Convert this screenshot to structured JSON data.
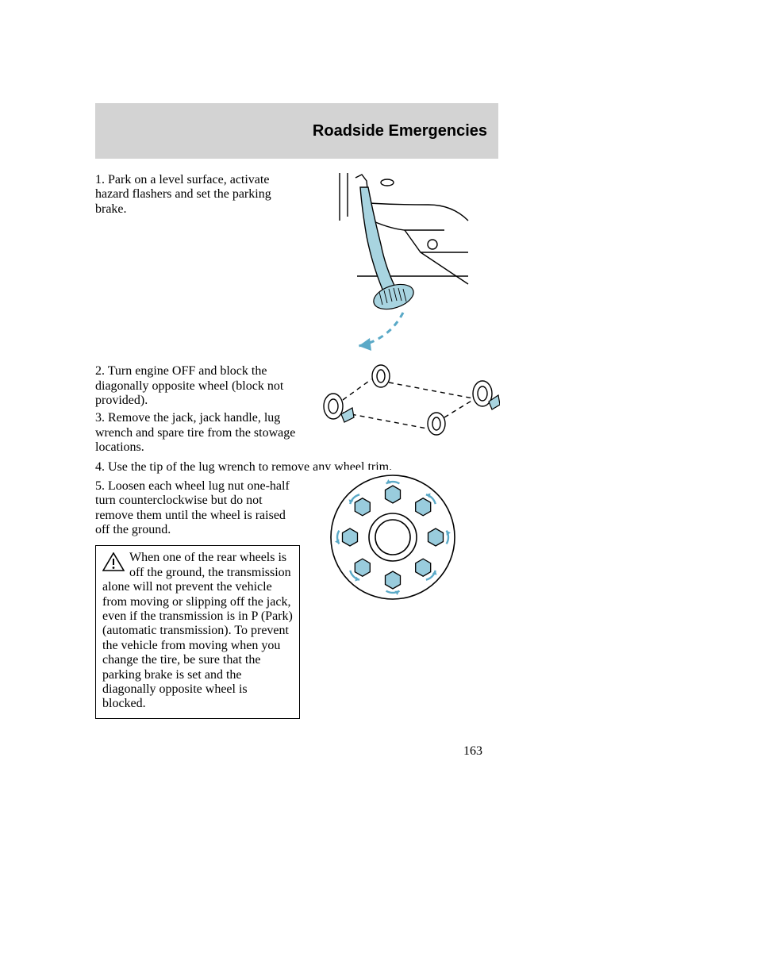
{
  "header": {
    "title": "Roadside Emergencies"
  },
  "steps": {
    "s1": "1. Park on a level surface, activate hazard flashers and set the parking brake.",
    "s2": "2. Turn engine OFF and block the diagonally opposite wheel (block not provided).",
    "s3": "3. Remove the jack, jack handle, lug wrench and spare tire from the stowage locations.",
    "s4": "4. Use the tip of the lug wrench to remove any wheel trim.",
    "s5": "5. Loosen each wheel lug nut one-half turn counterclockwise but do not remove them until the wheel is raised off the ground."
  },
  "warning": {
    "text": "When one of the rear wheels is off the ground, the transmission alone will not prevent the vehicle from moving or slipping off the jack, even if the transmission is in P (Park) (automatic transmission). To prevent the vehicle from moving when you change the tire, be sure that the parking brake is set and the diagonally opposite wheel is blocked."
  },
  "page_number": "163",
  "colors": {
    "header_bg": "#d3d3d3",
    "text": "#000000",
    "accent_blue": "#99ccdd",
    "accent_blue_stroke": "#5aa9c7",
    "line": "#000000",
    "bg": "#ffffff"
  },
  "illustrations": {
    "parking_brake": {
      "type": "line-drawing",
      "description": "vehicle parking brake pedal with downward arrow",
      "accent": "#99ccdd"
    },
    "wheel_block": {
      "type": "line-drawing",
      "description": "top-down four wheels with diagonal block indicators",
      "accent": "#99ccdd"
    },
    "lug_pattern": {
      "type": "line-drawing",
      "description": "wheel lug nut circle with counterclockwise arrows",
      "lug_count": 8,
      "accent": "#99ccdd"
    }
  }
}
